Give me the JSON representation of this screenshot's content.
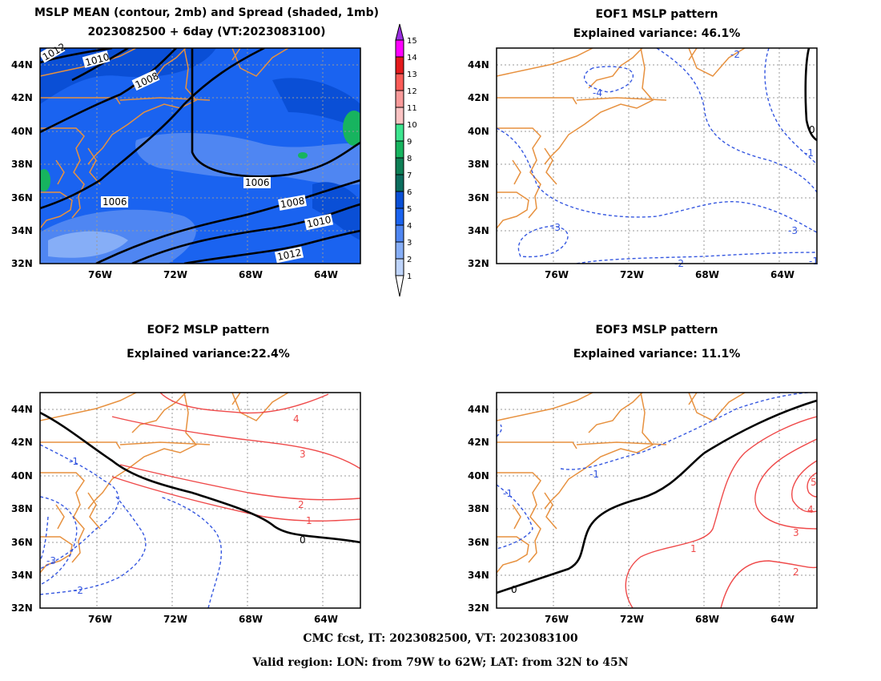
{
  "panels": {
    "mean": {
      "title_line1": "MSLP MEAN (contour, 2mb) and Spread (shaded, 1mb)",
      "title_line2": "2023082500 + 6day (VT:2023083100)",
      "contour_labels": [
        "1012",
        "1010",
        "1008",
        "1006",
        "1006",
        "1008",
        "1010",
        "1012"
      ]
    },
    "eof1": {
      "title_line1": "EOF1 MSLP pattern",
      "title_line2": "Explained variance: 46.1%",
      "contour_labels": [
        "-2",
        "-4",
        "0",
        "-1",
        "-3",
        "-3",
        "-2",
        "-1"
      ]
    },
    "eof2": {
      "title_line1": "EOF2 MSLP pattern",
      "title_line2": "Explained variance:22.4%",
      "contour_labels": [
        "4",
        "3",
        "2",
        "1",
        "0",
        "-1",
        "-3",
        "-2"
      ]
    },
    "eof3": {
      "title_line1": "EOF3 MSLP pattern",
      "title_line2": "Explained variance: 11.1%",
      "contour_labels": [
        "-1",
        "-1",
        "0",
        "1",
        "2",
        "3",
        "4",
        "5"
      ]
    }
  },
  "axes": {
    "lat_labels": [
      "44N",
      "42N",
      "40N",
      "38N",
      "36N",
      "34N",
      "32N"
    ],
    "lon_labels": [
      "76W",
      "72W",
      "68W",
      "64W"
    ]
  },
  "colorbar": {
    "labels": [
      "15",
      "14",
      "13",
      "12",
      "11",
      "10",
      "9",
      "8",
      "7",
      "6",
      "5",
      "4",
      "3",
      "2",
      "1"
    ],
    "colors": [
      "#9a2fe0",
      "#ff00ff",
      "#e31a1c",
      "#fc5c58",
      "#f99a9a",
      "#fbc3c3",
      "#3de58f",
      "#17b45f",
      "#0e7f56",
      "#0c6d5e",
      "#0a4fd6",
      "#1a63f0",
      "#4f86f2",
      "#86aef7",
      "#bed4fb"
    ]
  },
  "footer": {
    "line1": "CMC fcst, IT: 2023082500, VT: 2023083100",
    "line2": "Valid region: LON: from 79W to 62W; LAT: from 32N to 45N"
  }
}
